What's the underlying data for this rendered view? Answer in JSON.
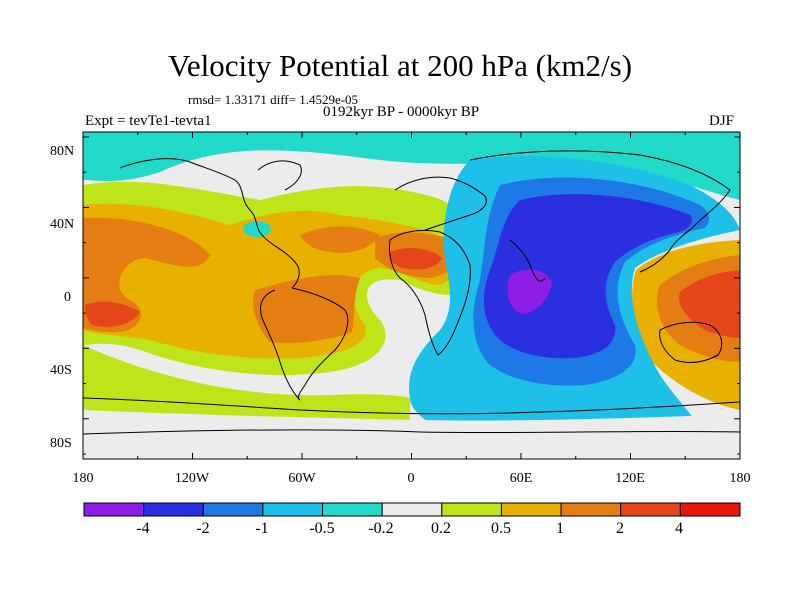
{
  "figure": {
    "title": "Velocity Potential at 200 hPa (km2/s)",
    "stats": "rmsd= 1.33171 diff= 1.4529e-05",
    "experiment": "Expt = tevTe1-tevta1",
    "period": "0192kyr BP - 0000kyr BP",
    "season": "DJF"
  },
  "axes": {
    "lat_labels": [
      "80N",
      "40N",
      "0",
      "40S",
      "80S"
    ],
    "lon_labels": [
      "180",
      "120W",
      "60W",
      "0",
      "60E",
      "120E",
      "180"
    ]
  },
  "colorbar": {
    "labels": [
      "-4",
      "-2",
      "-1",
      "-0.5",
      "-0.2",
      "0.2",
      "0.5",
      "1",
      "2",
      "4"
    ],
    "colors": [
      "#8c1ee6",
      "#2b2fe0",
      "#1e78e6",
      "#1ec0e8",
      "#21d9c8",
      "#ececec",
      "#bde51a",
      "#e8b100",
      "#e57e12",
      "#e6471a",
      "#e8150f"
    ]
  }
}
